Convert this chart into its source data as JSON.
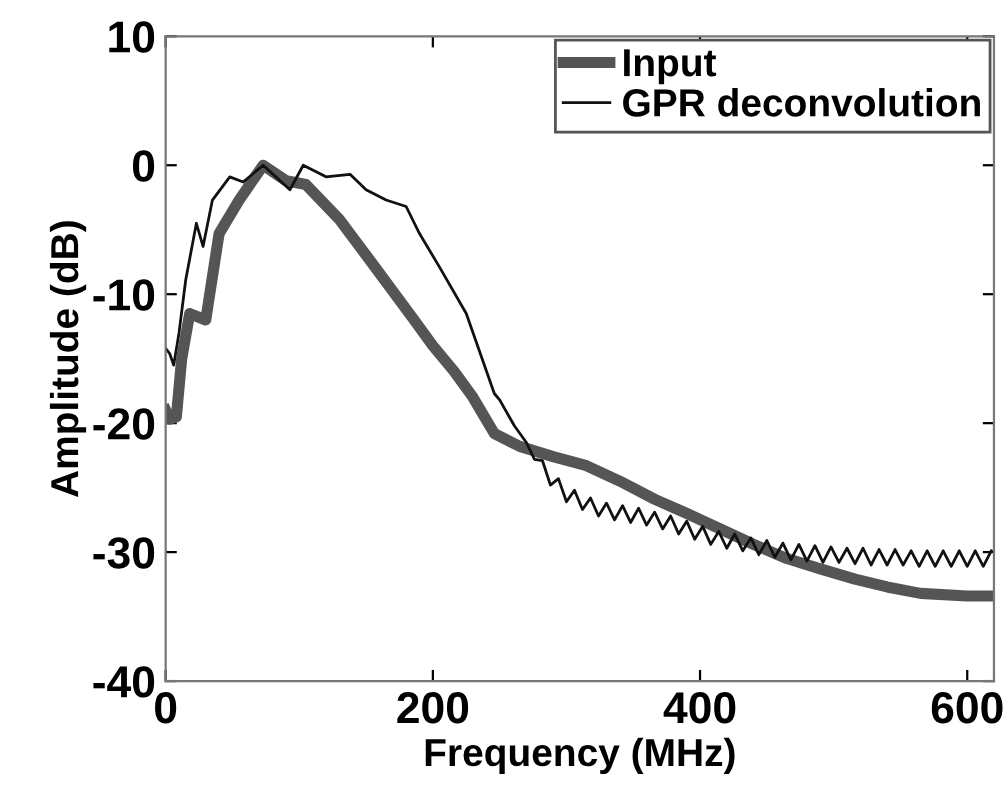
{
  "chart_data": {
    "type": "line",
    "xlabel": "Frequency (MHz)",
    "ylabel": "Amplitude (dB)",
    "xlim": [
      0,
      620
    ],
    "xticks": [
      0,
      200,
      400,
      600
    ],
    "ylim": [
      -40,
      10
    ],
    "yticks": [
      10,
      0,
      -10,
      -20,
      -30,
      -40
    ],
    "grid": false,
    "legend": "top right",
    "series": [
      {
        "name": "Input",
        "color": "#555555",
        "x": [
          0,
          3,
          8,
          12,
          18,
          30,
          40,
          55,
          73,
          90,
          105,
          130,
          156,
          186,
          200,
          216,
          230,
          246,
          265,
          290,
          315,
          340,
          366,
          390,
          415,
          440,
          465,
          490,
          516,
          540,
          565,
          600,
          620
        ],
        "values": [
          -19.0,
          -19.7,
          -19.5,
          -15.0,
          -11.5,
          -12.0,
          -5.3,
          -2.7,
          0,
          -1.2,
          -1.5,
          -4.2,
          -7.8,
          -12.0,
          -14.0,
          -16.0,
          -18.0,
          -20.8,
          -21.8,
          -22.6,
          -23.3,
          -24.5,
          -25.9,
          -27.0,
          -28.2,
          -29.4,
          -30.5,
          -31.3,
          -32.1,
          -32.7,
          -33.2,
          -33.4,
          -33.4
        ]
      },
      {
        "name": "GPR deconvolution",
        "color": "#111111",
        "x": [
          0,
          3,
          6,
          10,
          15,
          23,
          28,
          35,
          48,
          58,
          73,
          93,
          103,
          120,
          138,
          150,
          165,
          180,
          190,
          205,
          225,
          246,
          250,
          261,
          270,
          276,
          282,
          288,
          294,
          300,
          306,
          312,
          318,
          324,
          330,
          336,
          342,
          348,
          354,
          360,
          366,
          372,
          378,
          384,
          390,
          396,
          402,
          408,
          414,
          420,
          426,
          432,
          438,
          444,
          450,
          456,
          462,
          468,
          474,
          480,
          486,
          492,
          498,
          504,
          510,
          516,
          522,
          528,
          534,
          540,
          546,
          552,
          558,
          564,
          570,
          576,
          582,
          588,
          594,
          600,
          606,
          612,
          618
        ],
        "values": [
          -14.2,
          -14.6,
          -15.5,
          -13.0,
          -8.9,
          -4.5,
          -6.3,
          -2.7,
          -0.9,
          -1.3,
          0,
          -1.9,
          0,
          -0.9,
          -0.7,
          -1.9,
          -2.7,
          -3.2,
          -5.3,
          -7.9,
          -11.5,
          -17.7,
          -18.2,
          -20.2,
          -21.5,
          -22.8,
          -22.9,
          -24.8,
          -24.3,
          -26.1,
          -25.2,
          -26.7,
          -25.8,
          -27.2,
          -26.2,
          -27.5,
          -26.4,
          -27.7,
          -26.6,
          -27.9,
          -26.9,
          -28.2,
          -27.2,
          -28.6,
          -27.6,
          -29.0,
          -28.0,
          -29.4,
          -28.4,
          -29.7,
          -28.6,
          -29.9,
          -28.9,
          -30.2,
          -29.1,
          -30.4,
          -29.3,
          -30.6,
          -29.4,
          -30.7,
          -29.5,
          -30.8,
          -29.6,
          -30.8,
          -29.7,
          -30.9,
          -29.7,
          -31.0,
          -29.8,
          -31.0,
          -29.8,
          -31.0,
          -29.9,
          -31.1,
          -29.9,
          -31.1,
          -29.9,
          -31.1,
          -29.9,
          -31.1,
          -29.9,
          -31.1,
          -29.9
        ]
      }
    ]
  }
}
